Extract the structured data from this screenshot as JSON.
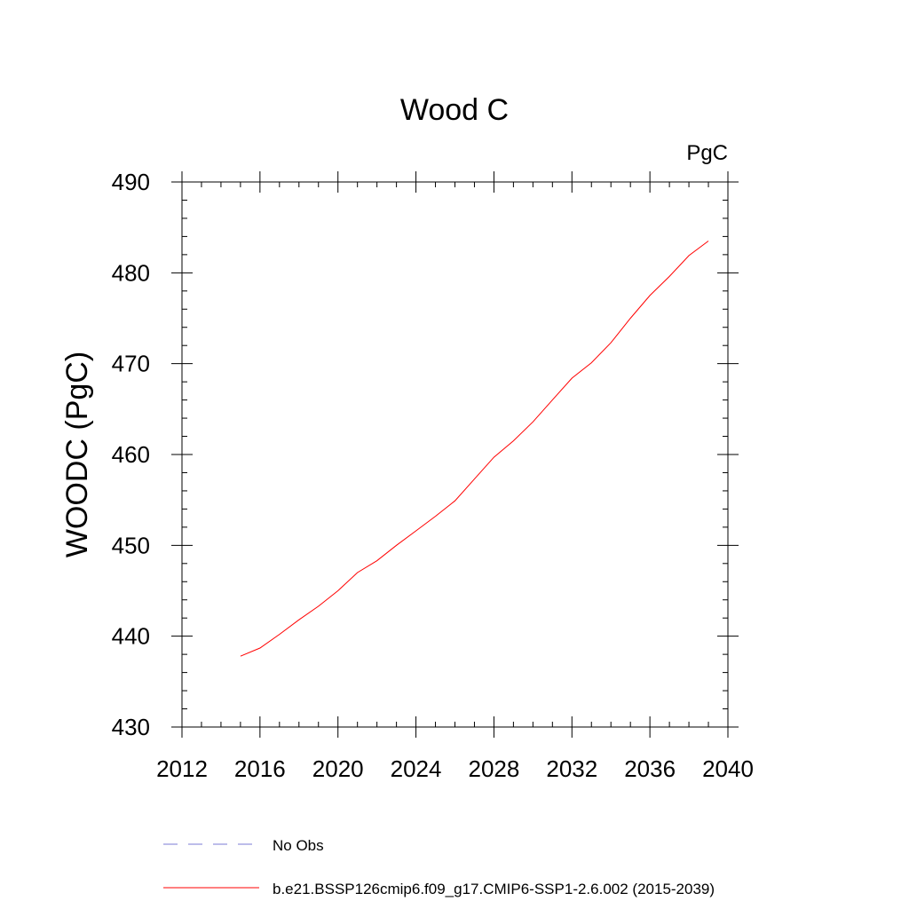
{
  "chart_data": {
    "type": "line",
    "title": "Wood C",
    "units_label": "PgC",
    "xlabel": "",
    "ylabel": "WOODC  (PgC)",
    "xlim": [
      2012,
      2040
    ],
    "ylim": [
      430,
      490
    ],
    "xticks": [
      2012,
      2016,
      2020,
      2024,
      2028,
      2032,
      2036,
      2040
    ],
    "yticks": [
      430,
      440,
      450,
      460,
      470,
      480,
      490
    ],
    "grid": false,
    "legend_position": "bottom",
    "series": [
      {
        "name": "b.e21.BSSP126cmip6.f09_g17.CMIP6-SSP1-2.6.002 (2015-2039)",
        "color": "#ff0000",
        "style": "solid",
        "x": [
          2015,
          2016,
          2017,
          2018,
          2019,
          2020,
          2021,
          2022,
          2023,
          2024,
          2025,
          2026,
          2027,
          2028,
          2029,
          2030,
          2031,
          2032,
          2033,
          2034,
          2035,
          2036,
          2037,
          2038,
          2039
        ],
        "y": [
          437.8,
          438.7,
          440.2,
          441.8,
          443.3,
          445.0,
          447.0,
          448.3,
          450.0,
          451.6,
          453.2,
          454.9,
          457.3,
          459.7,
          461.5,
          463.6,
          466.0,
          468.4,
          470.1,
          472.3,
          475.0,
          477.5,
          479.6,
          481.9,
          483.5
        ]
      }
    ],
    "legend": [
      {
        "label": "No Obs",
        "color": "#7b7bd6",
        "style": "dashed"
      },
      {
        "label": "b.e21.BSSP126cmip6.f09_g17.CMIP6-SSP1-2.6.002 (2015-2039)",
        "color": "#ff0000",
        "style": "solid"
      }
    ]
  }
}
